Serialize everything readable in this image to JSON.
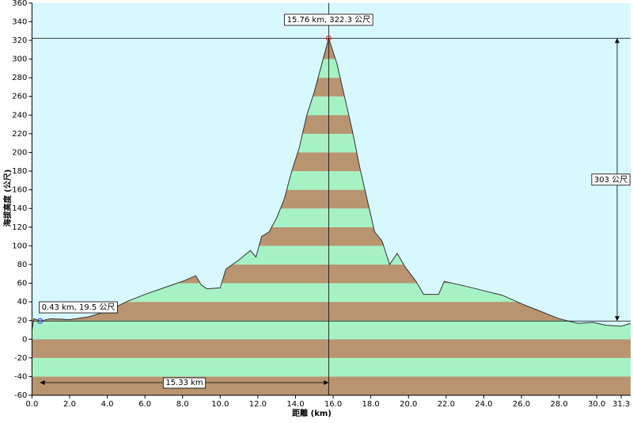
{
  "chart_data": {
    "type": "area",
    "x_label": "距離 (km)",
    "y_label": "海拔高度 (公尺)",
    "x": [
      0,
      0.1,
      0.43,
      1.0,
      2.0,
      3.0,
      4.0,
      5.0,
      6.0,
      7.0,
      8.0,
      8.7,
      9.0,
      9.3,
      10.0,
      10.3,
      11.0,
      11.3,
      11.6,
      11.9,
      12.2,
      12.6,
      13.0,
      13.4,
      13.8,
      14.2,
      14.6,
      15.0,
      15.4,
      15.76,
      16.2,
      16.6,
      17.0,
      17.4,
      17.8,
      18.2,
      18.6,
      19.0,
      19.4,
      19.8,
      20.4,
      20.8,
      21.6,
      21.9,
      23.0,
      24.0,
      25.0,
      26.0,
      27.0,
      28.0,
      29.0,
      29.8,
      30.5,
      31.3,
      31.8
    ],
    "values": [
      10,
      22,
      19.5,
      22,
      21,
      24,
      30,
      40,
      48,
      55,
      62,
      68,
      58,
      54,
      55,
      75,
      85,
      90,
      95,
      88,
      110,
      115,
      130,
      150,
      180,
      205,
      240,
      265,
      295,
      322.3,
      295,
      260,
      225,
      185,
      150,
      115,
      105,
      80,
      92,
      78,
      62,
      48,
      48,
      62,
      57,
      52,
      47,
      38,
      30,
      22,
      17,
      18,
      15,
      14,
      17
    ],
    "xlim": [
      0,
      31.8
    ],
    "ylim": [
      -60,
      360
    ],
    "xticks": [
      {
        "value": 0,
        "label": "0.0"
      },
      {
        "value": 2,
        "label": "2.0"
      },
      {
        "value": 4,
        "label": "4.0"
      },
      {
        "value": 6,
        "label": "6.0"
      },
      {
        "value": 8,
        "label": "8.0"
      },
      {
        "value": 10,
        "label": "10.0"
      },
      {
        "value": 12,
        "label": "12.0"
      },
      {
        "value": 14,
        "label": "14.0"
      },
      {
        "value": 16,
        "label": "16.0"
      },
      {
        "value": 18,
        "label": "18.0"
      },
      {
        "value": 20,
        "label": "20.0"
      },
      {
        "value": 22,
        "label": "22.0"
      },
      {
        "value": 24,
        "label": "24.0"
      },
      {
        "value": 26,
        "label": "26.0"
      },
      {
        "value": 28,
        "label": "28.0"
      },
      {
        "value": 30,
        "label": "30.0"
      },
      31.3
    ],
    "yticks": [
      -60,
      -40,
      -20,
      0,
      20,
      40,
      60,
      80,
      100,
      120,
      140,
      160,
      180,
      200,
      220,
      240,
      260,
      280,
      300,
      320,
      340,
      360
    ],
    "background": "#d8f8ff",
    "band_colors": [
      "#b89470",
      "#a6f2c4"
    ],
    "line_color": "#333333",
    "markers": [
      {
        "x": 0.43,
        "y": 19.5,
        "label": "0.43 km, 19.5 公尺",
        "color": "#3344cc"
      },
      {
        "x": 15.76,
        "y": 322.3,
        "label": "15.76 km, 322.3 公尺",
        "color": "#e03030"
      }
    ],
    "distance_label": "15.33 km",
    "height_label": "303 公尺"
  }
}
